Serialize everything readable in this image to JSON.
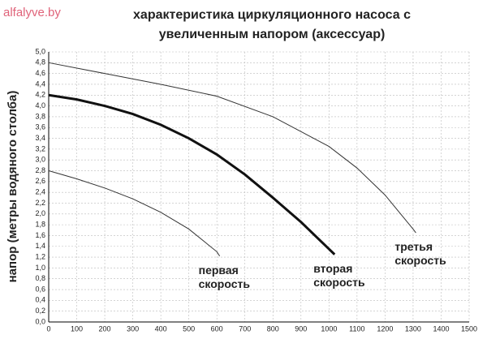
{
  "watermark": "alfalyve.by",
  "chart_data": {
    "type": "line",
    "title": [
      "характеристика циркуляционного насоса с",
      "увеличенным напором (аксессуар)"
    ],
    "y_label": "напор (метры водяного столба)",
    "series": [
      {
        "name": "первая скорость",
        "color": "#333333",
        "width": 1,
        "x": [
          0,
          100,
          200,
          300,
          400,
          500,
          600,
          610
        ],
        "values": [
          2.8,
          2.65,
          2.48,
          2.28,
          2.03,
          1.72,
          1.3,
          1.22
        ]
      },
      {
        "name": "вторая скорость",
        "color": "#111111",
        "width": 3,
        "x": [
          0,
          100,
          200,
          300,
          400,
          500,
          600,
          700,
          800,
          900,
          1000,
          1020
        ],
        "values": [
          4.2,
          4.12,
          4.0,
          3.85,
          3.65,
          3.4,
          3.1,
          2.73,
          2.3,
          1.85,
          1.35,
          1.25
        ]
      },
      {
        "name": "третья скорость",
        "color": "#333333",
        "width": 1,
        "x": [
          0,
          200,
          400,
          600,
          800,
          1000,
          1100,
          1200,
          1300,
          1310
        ],
        "values": [
          4.8,
          4.6,
          4.4,
          4.18,
          3.8,
          3.25,
          2.85,
          2.35,
          1.72,
          1.65
        ]
      }
    ],
    "xlim": [
      0,
      1500
    ],
    "xticks": [
      0,
      100,
      200,
      300,
      400,
      500,
      600,
      700,
      800,
      900,
      1000,
      1100,
      1200,
      1300,
      1400,
      1500
    ],
    "ylim": [
      0,
      5
    ],
    "yticks": [
      {
        "value": 0,
        "label": "0,0"
      },
      {
        "value": 0.2,
        "label": "0,2"
      },
      {
        "value": 0.4,
        "label": "0,4"
      },
      {
        "value": 0.6,
        "label": "0,6"
      },
      {
        "value": 0.8,
        "label": "0,8"
      },
      {
        "value": 1.0,
        "label": "1,0"
      },
      {
        "value": 1.2,
        "label": "1,2"
      },
      {
        "value": 1.4,
        "label": "1,4"
      },
      {
        "value": 1.6,
        "label": "1,6"
      },
      {
        "value": 1.8,
        "label": "1,8"
      },
      {
        "value": 2.0,
        "label": "2,0"
      },
      {
        "value": 2.2,
        "label": "2,2"
      },
      {
        "value": 2.4,
        "label": "2,4"
      },
      {
        "value": 2.6,
        "label": "2,6"
      },
      {
        "value": 2.8,
        "label": "2,8"
      },
      {
        "value": 3.0,
        "label": "3,0"
      },
      {
        "value": 3.2,
        "label": "3,2"
      },
      {
        "value": 3.4,
        "label": "3,4"
      },
      {
        "value": 3.6,
        "label": "3,6"
      },
      {
        "value": 3.8,
        "label": "3,8"
      },
      {
        "value": 4.0,
        "label": "4,0"
      },
      {
        "value": 4.2,
        "label": "4,2"
      },
      {
        "value": 4.4,
        "label": "4,4"
      },
      {
        "value": 4.6,
        "label": "4,6"
      },
      {
        "value": 4.8,
        "label": "4,8"
      },
      {
        "value": 5.0,
        "label": "5,0"
      }
    ],
    "grid": true
  }
}
